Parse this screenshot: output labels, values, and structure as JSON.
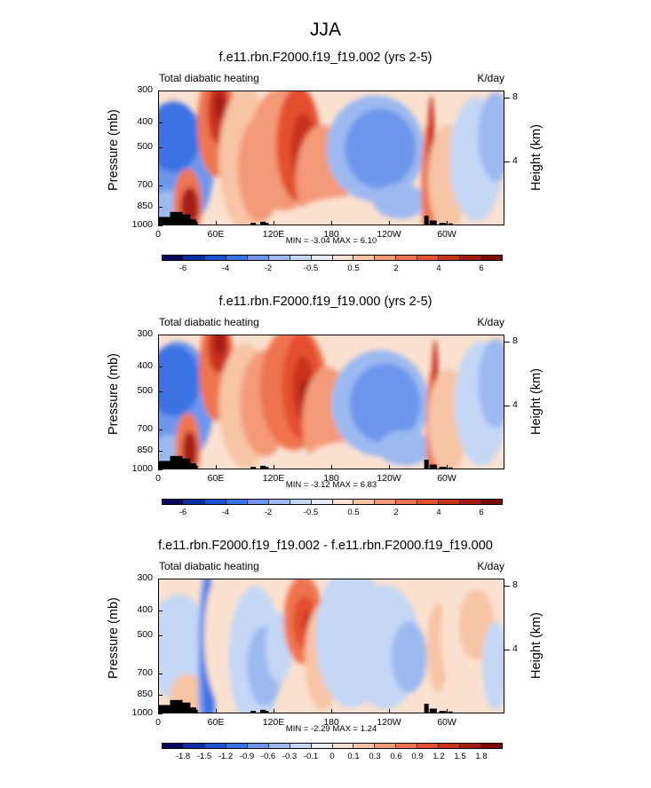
{
  "main_title": "JJA",
  "palette": {
    "full": [
      "#07085c",
      "#0b2fa0",
      "#1a52d6",
      "#3b72e4",
      "#6d96ec",
      "#9cb9f0",
      "#c4d7f5",
      "#e7eef9",
      "#fbe1cf",
      "#f7c4a6",
      "#f49a78",
      "#ee7450",
      "#e4502f",
      "#c9321b",
      "#a61a12",
      "#7d0a08"
    ],
    "diff": [
      "#07085c",
      "#0b2fa0",
      "#1a52d6",
      "#3b72e4",
      "#6d96ec",
      "#9cb9f0",
      "#c4d7f5",
      "#e7eef9",
      "#fbe1cf",
      "#f7c4a6",
      "#f49a78",
      "#ee7450",
      "#e4502f",
      "#c9321b",
      "#a61a12",
      "#7d0a08"
    ]
  },
  "chart_data": [
    {
      "type": "heatmap",
      "title": "f.e11.rbn.F2000.f19_f19.002 (yrs 2-5)",
      "left_label": "Total diabatic heating",
      "units": "K/day",
      "ylabel": "Pressure (mb)",
      "y2label": "Height (km)",
      "xticks": [
        "0",
        "60E",
        "120E",
        "180",
        "120W",
        "60W"
      ],
      "yticks": [
        "300",
        "400",
        "500",
        "700",
        "850",
        "1000"
      ],
      "y2ticks": [
        "8",
        "4"
      ],
      "minmax": "MIN = -3.04  MAX = 6.10",
      "colorbar_labels": [
        "-6",
        "-4",
        "-2",
        "-0.5",
        "0.5",
        "2",
        "4",
        "6"
      ],
      "xlim": [
        0,
        360
      ],
      "ylim": [
        1000,
        300
      ],
      "variant": "a"
    },
    {
      "type": "heatmap",
      "title": "f.e11.rbn.F2000.f19_f19.000 (yrs 2-5)",
      "left_label": "Total diabatic heating",
      "units": "K/day",
      "ylabel": "Pressure (mb)",
      "y2label": "Height (km)",
      "xticks": [
        "0",
        "60E",
        "120E",
        "180",
        "120W",
        "60W"
      ],
      "yticks": [
        "300",
        "400",
        "500",
        "700",
        "850",
        "1000"
      ],
      "y2ticks": [
        "8",
        "4"
      ],
      "minmax": "MIN = -3.12  MAX = 6.83",
      "colorbar_labels": [
        "-6",
        "-4",
        "-2",
        "-0.5",
        "0.5",
        "2",
        "4",
        "6"
      ],
      "xlim": [
        0,
        360
      ],
      "ylim": [
        1000,
        300
      ],
      "variant": "b"
    },
    {
      "type": "heatmap",
      "title": "f.e11.rbn.F2000.f19_f19.002 - f.e11.rbn.F2000.f19_f19.000",
      "left_label": "Total diabatic heating",
      "units": "K/day",
      "ylabel": "Pressure (mb)",
      "y2label": "Height (km)",
      "xticks": [
        "0",
        "60E",
        "120E",
        "180",
        "120W",
        "60W"
      ],
      "yticks": [
        "300",
        "400",
        "500",
        "700",
        "850",
        "1000"
      ],
      "y2ticks": [
        "8",
        "4"
      ],
      "minmax": "MIN = -2.29  MAX = 1.24",
      "colorbar_labels": [
        "-1.8",
        "-1.5",
        "-1.2",
        "-0.9",
        "-0.6",
        "-0.3",
        "-0.1",
        "0",
        "0.1",
        "0.3",
        "0.6",
        "0.9",
        "1.2",
        "1.5",
        "1.8"
      ],
      "xlim": [
        0,
        360
      ],
      "ylim": [
        1000,
        300
      ],
      "variant": "diff"
    }
  ]
}
